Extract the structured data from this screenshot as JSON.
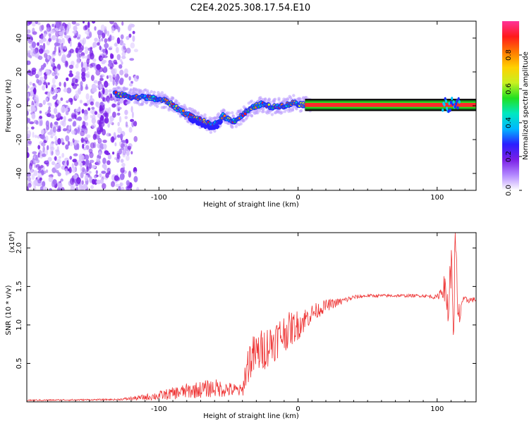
{
  "chart_data": [
    {
      "type": "heatmap",
      "title": "C2E4.2025.308.17.54.E10",
      "xlabel": "Height of straight line (km)",
      "ylabel": "Frequency (Hz)",
      "xlim": [
        -195,
        128
      ],
      "ylim": [
        -50,
        50
      ],
      "xticks": [
        -100,
        0,
        100
      ],
      "yticks": [
        -40,
        -20,
        0,
        20,
        40
      ],
      "colorbar": {
        "label": "Normalized spectral amplitude",
        "range": [
          0,
          1
        ],
        "ticks": [
          "0.0",
          "0.2",
          "0.4",
          "0.6",
          "0.8"
        ],
        "colors": [
          "#ffffff",
          "#b388ff",
          "#7a1fe6",
          "#2a1fff",
          "#00b8ff",
          "#00e8c0",
          "#20e020",
          "#c8f020",
          "#ffd000",
          "#ff7a00",
          "#ff1a1a",
          "#ff3399"
        ]
      },
      "ridge": {
        "x": [
          -132,
          -125,
          -118,
          -110,
          -102,
          -95,
          -88,
          -80,
          -72,
          -66,
          -62,
          -58,
          -54,
          -50,
          -46,
          -42,
          -38,
          -34,
          -30,
          -26,
          -22,
          -18,
          -14,
          -10,
          -6,
          -2,
          0,
          10,
          40,
          70,
          95,
          105,
          110,
          113,
          128
        ],
        "y": [
          7,
          6,
          5,
          5,
          4,
          3,
          -1,
          -5,
          -8,
          -10,
          -12,
          -10,
          -6,
          -8,
          -9,
          -7,
          -4,
          -2,
          0,
          1,
          0,
          -1,
          0,
          0,
          1,
          2,
          1,
          0.5,
          0.5,
          0.5,
          0.5,
          1,
          3,
          0,
          0.5
        ]
      },
      "noise_region_x": [
        -195,
        -115
      ],
      "tone": {
        "x_start": 5,
        "x_end": 128,
        "y": 0.5
      }
    },
    {
      "type": "line",
      "xlabel": "Height of straight line (km)",
      "ylabel": "SNR (10 * v/v)",
      "scale_label": "(x10⁴)",
      "xlim": [
        -195,
        128
      ],
      "ylim": [
        0,
        2.2
      ],
      "xticks": [
        -100,
        0,
        100
      ],
      "yticks": [
        0.5,
        1.0,
        1.5,
        2.0
      ],
      "ytick_labels": [
        "0.5",
        "1.0",
        "1.5",
        "2.0"
      ],
      "series": [
        {
          "name": "SNR",
          "color": "#ee3333",
          "x": [
            -195,
            -130,
            -115,
            -100,
            -80,
            -60,
            -40,
            -38,
            -35,
            -30,
            -20,
            -10,
            0,
            10,
            20,
            30,
            40,
            50,
            70,
            90,
            100,
            105,
            108,
            110,
            112,
            113,
            115,
            118,
            128
          ],
          "y": [
            0.02,
            0.03,
            0.05,
            0.08,
            0.14,
            0.18,
            0.14,
            0.35,
            0.55,
            0.62,
            0.75,
            0.9,
            1.0,
            1.15,
            1.25,
            1.3,
            1.36,
            1.38,
            1.38,
            1.38,
            1.36,
            1.5,
            1.2,
            1.8,
            1.0,
            2.2,
            1.0,
            1.32,
            1.33
          ],
          "spread": [
            0.01,
            0.01,
            0.03,
            0.06,
            0.1,
            0.12,
            0.08,
            0.2,
            0.28,
            0.28,
            0.28,
            0.25,
            0.2,
            0.12,
            0.08,
            0.05,
            0.03,
            0.02,
            0.02,
            0.02,
            0.03,
            0.15,
            0.3,
            0.3,
            0.4,
            0.3,
            0.3,
            0.05,
            0.03
          ]
        }
      ]
    }
  ]
}
